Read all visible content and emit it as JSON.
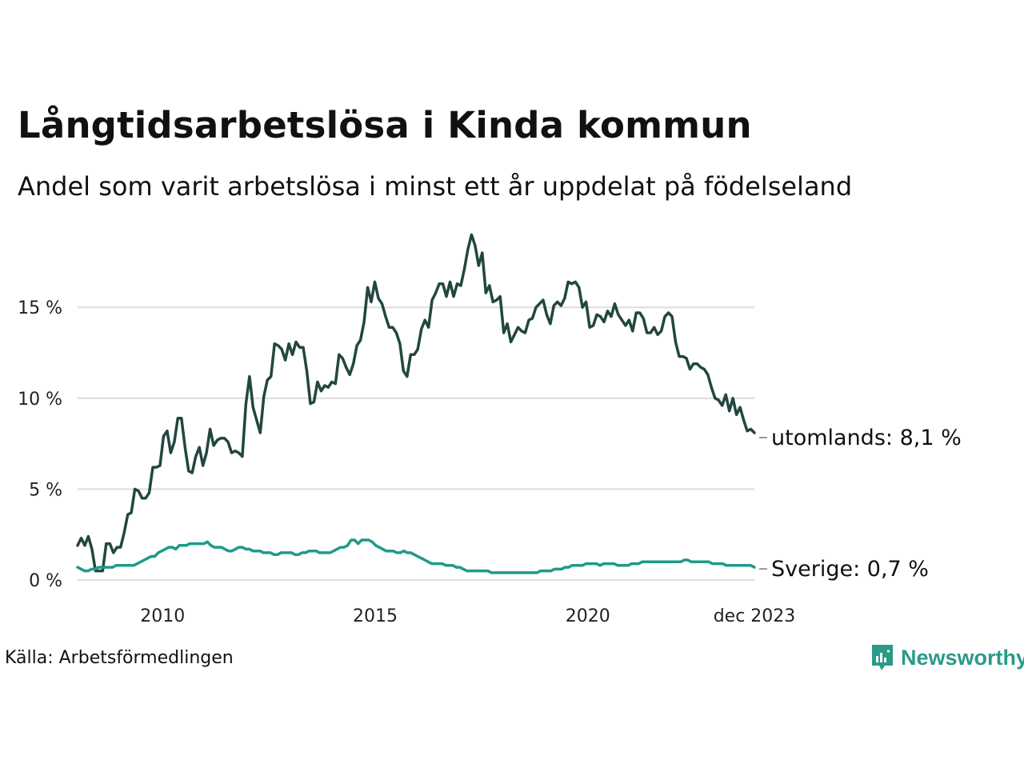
{
  "title": "Långtidsarbetslösa i Kinda kommun",
  "subtitle": "Andel som varit arbetslösa i minst ett år uppdelat på födelseland",
  "source": "Källa: Arbetsförmedlingen",
  "brand": "Newsworthy",
  "colors": {
    "utomlands": "#21473f",
    "sverige": "#1f9a88",
    "grid": "#dddddd",
    "brand": "#2b9a89"
  },
  "chart_data": {
    "type": "line",
    "title": "Långtidsarbetslösa i Kinda kommun",
    "xlabel": "",
    "ylabel": "",
    "x_start": 2008.0,
    "x_step_months": 1,
    "xlim": [
      2008.0,
      2023.917
    ],
    "ylim": [
      0,
      19.5
    ],
    "yticks": [
      0,
      5,
      10,
      15
    ],
    "ytick_labels": [
      "0 %",
      "5 %",
      "10 %",
      "15 %"
    ],
    "xticks": [
      2010,
      2015,
      2020,
      2023.917
    ],
    "xtick_labels": [
      "2010",
      "2015",
      "2020",
      "dec 2023"
    ],
    "grid": true,
    "legend": "end-of-line labels",
    "series": [
      {
        "name": "utomlands",
        "end_label": "utomlands: 8,1 %",
        "values": [
          1.9,
          2.3,
          1.9,
          2.4,
          1.7,
          0.5,
          0.5,
          0.5,
          2.0,
          2.0,
          1.5,
          1.8,
          1.8,
          2.6,
          3.6,
          3.7,
          5.0,
          4.9,
          4.5,
          4.5,
          4.8,
          6.2,
          6.2,
          6.3,
          7.9,
          8.2,
          7.0,
          7.6,
          8.9,
          8.9,
          7.3,
          6.0,
          5.9,
          6.8,
          7.3,
          6.3,
          7.0,
          8.3,
          7.4,
          7.7,
          7.8,
          7.8,
          7.6,
          7.0,
          7.1,
          7.0,
          6.8,
          9.7,
          11.2,
          9.5,
          8.8,
          8.1,
          10.1,
          11.0,
          11.2,
          13.0,
          12.9,
          12.7,
          12.1,
          13.0,
          12.4,
          13.1,
          12.8,
          12.8,
          11.5,
          9.7,
          9.8,
          10.9,
          10.4,
          10.7,
          10.6,
          10.9,
          10.8,
          12.4,
          12.2,
          11.7,
          11.3,
          11.9,
          12.9,
          13.2,
          14.2,
          16.1,
          15.3,
          16.4,
          15.5,
          15.2,
          14.5,
          13.9,
          13.9,
          13.6,
          13.0,
          11.5,
          11.2,
          12.4,
          12.4,
          12.7,
          13.8,
          14.3,
          13.9,
          15.4,
          15.8,
          16.3,
          16.3,
          15.6,
          16.4,
          15.6,
          16.3,
          16.2,
          17.1,
          18.2,
          19.0,
          18.4,
          17.3,
          18.0,
          15.8,
          16.2,
          15.3,
          15.4,
          15.6,
          13.6,
          14.1,
          13.1,
          13.5,
          13.9,
          13.7,
          13.6,
          14.3,
          14.4,
          15.0,
          15.2,
          15.4,
          14.6,
          14.1,
          15.1,
          15.3,
          15.1,
          15.5,
          16.4,
          16.3,
          16.4,
          16.1,
          15.0,
          15.3,
          13.9,
          14.0,
          14.6,
          14.5,
          14.2,
          14.8,
          14.5,
          15.2,
          14.6,
          14.3,
          14.0,
          14.3,
          13.7,
          14.7,
          14.7,
          14.4,
          13.6,
          13.6,
          13.9,
          13.5,
          13.7,
          14.5,
          14.7,
          14.5,
          13.1,
          12.3,
          12.3,
          12.2,
          11.6,
          11.9,
          11.9,
          11.7,
          11.6,
          11.3,
          10.6,
          10.0,
          9.9,
          9.6,
          10.2,
          9.3,
          10.0,
          9.1,
          9.5,
          8.8,
          8.2,
          8.3,
          8.1
        ]
      },
      {
        "name": "Sverige",
        "end_label": "Sverige: 0,7 %",
        "values": [
          0.7,
          0.6,
          0.5,
          0.5,
          0.6,
          0.6,
          0.7,
          0.7,
          0.7,
          0.7,
          0.7,
          0.8,
          0.8,
          0.8,
          0.8,
          0.8,
          0.8,
          0.9,
          1.0,
          1.1,
          1.2,
          1.3,
          1.3,
          1.5,
          1.6,
          1.7,
          1.8,
          1.8,
          1.7,
          1.9,
          1.9,
          1.9,
          2.0,
          2.0,
          2.0,
          2.0,
          2.0,
          2.1,
          1.9,
          1.8,
          1.8,
          1.8,
          1.7,
          1.6,
          1.6,
          1.7,
          1.8,
          1.8,
          1.7,
          1.7,
          1.6,
          1.6,
          1.6,
          1.5,
          1.5,
          1.5,
          1.4,
          1.4,
          1.5,
          1.5,
          1.5,
          1.5,
          1.4,
          1.4,
          1.5,
          1.5,
          1.6,
          1.6,
          1.6,
          1.5,
          1.5,
          1.5,
          1.5,
          1.6,
          1.7,
          1.8,
          1.8,
          1.9,
          2.2,
          2.2,
          2.0,
          2.2,
          2.2,
          2.2,
          2.1,
          1.9,
          1.8,
          1.7,
          1.6,
          1.6,
          1.6,
          1.5,
          1.5,
          1.6,
          1.5,
          1.5,
          1.4,
          1.3,
          1.2,
          1.1,
          1.0,
          0.9,
          0.9,
          0.9,
          0.9,
          0.8,
          0.8,
          0.8,
          0.7,
          0.7,
          0.6,
          0.5,
          0.5,
          0.5,
          0.5,
          0.5,
          0.5,
          0.5,
          0.4,
          0.4,
          0.4,
          0.4,
          0.4,
          0.4,
          0.4,
          0.4,
          0.4,
          0.4,
          0.4,
          0.4,
          0.4,
          0.4,
          0.5,
          0.5,
          0.5,
          0.5,
          0.6,
          0.6,
          0.6,
          0.7,
          0.7,
          0.8,
          0.8,
          0.8,
          0.8,
          0.9,
          0.9,
          0.9,
          0.9,
          0.8,
          0.9,
          0.9,
          0.9,
          0.9,
          0.8,
          0.8,
          0.8,
          0.8,
          0.9,
          0.9,
          0.9,
          1.0,
          1.0,
          1.0,
          1.0,
          1.0,
          1.0,
          1.0,
          1.0,
          1.0,
          1.0,
          1.0,
          1.0,
          1.1,
          1.1,
          1.0,
          1.0,
          1.0,
          1.0,
          1.0,
          1.0,
          0.9,
          0.9,
          0.9,
          0.9,
          0.8,
          0.8,
          0.8,
          0.8,
          0.8,
          0.8,
          0.8,
          0.8,
          0.7
        ]
      }
    ]
  }
}
